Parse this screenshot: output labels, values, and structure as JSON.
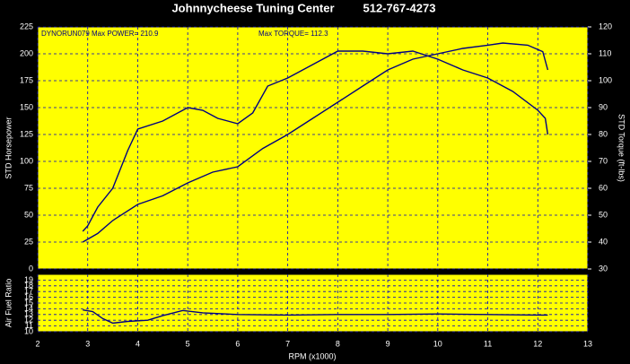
{
  "chart_data": [
    {
      "type": "line",
      "title": "Johnnycheese Tuning Center",
      "subtitle": "512-767-4273",
      "annotations": [
        "DYNORUN079 Max POWER= 210.9",
        "Max TORQUE= 112.3"
      ],
      "ylabel": "STD Horsepower",
      "y2label": "STD Torque (ft-lbs)",
      "xlim": [
        2,
        13
      ],
      "xticks": [
        2,
        3,
        4,
        5,
        6,
        7,
        8,
        9,
        10,
        11,
        12,
        13
      ],
      "ylim": [
        0,
        225
      ],
      "yticks": [
        0,
        25,
        50,
        75,
        100,
        125,
        150,
        175,
        200,
        225
      ],
      "y2lim": [
        30,
        120
      ],
      "y2ticks": [
        30,
        40,
        50,
        60,
        70,
        80,
        90,
        100,
        110,
        120
      ],
      "grid": true,
      "background": "#ffff00",
      "series": [
        {
          "color": "#000080",
          "x": [
            2.9,
            3.2,
            3.5,
            4.0,
            4.5,
            5.0,
            5.5,
            6.0,
            6.5,
            7.0,
            7.5,
            8.0,
            8.5,
            9.0,
            9.5,
            10.0,
            10.5,
            11.0,
            11.3,
            11.8,
            12.1,
            12.2
          ],
          "values": [
            25,
            33,
            45,
            60,
            68,
            80,
            90,
            95,
            112,
            125,
            140,
            155,
            170,
            185,
            195,
            200,
            205,
            208,
            210,
            208,
            202,
            185
          ]
        },
        {
          "color": "#000080",
          "axis": "y2",
          "x": [
            2.9,
            3.0,
            3.2,
            3.5,
            3.8,
            4.0,
            4.5,
            5.0,
            5.3,
            5.6,
            6.0,
            6.3,
            6.6,
            7.0,
            7.5,
            8.0,
            8.5,
            9.0,
            9.5,
            10.0,
            10.5,
            11.0,
            11.5,
            12.0,
            12.15,
            12.2
          ],
          "values": [
            44,
            46,
            53,
            60,
            74,
            82,
            85,
            90,
            89,
            86,
            84,
            88,
            98,
            101,
            106,
            111,
            111,
            110,
            111,
            108,
            104,
            101,
            96,
            89,
            86,
            80
          ]
        }
      ]
    },
    {
      "type": "line",
      "ylabel": "Air Fuel Ratio",
      "xlabel": "RPM (x1000)",
      "xlim": [
        2,
        13
      ],
      "xticks": [
        2,
        3,
        4,
        5,
        6,
        7,
        8,
        9,
        10,
        11,
        12,
        13
      ],
      "ylim": [
        10,
        20
      ],
      "yticks": [
        10,
        11,
        12,
        13,
        14,
        15,
        16,
        17,
        18,
        19
      ],
      "grid": true,
      "background": "#ffff00",
      "series": [
        {
          "color": "#000080",
          "x": [
            2.9,
            3.1,
            3.3,
            3.5,
            3.8,
            4.2,
            4.5,
            4.9,
            5.3,
            6.0,
            7.0,
            8.0,
            9.0,
            10.0,
            11.0,
            12.0,
            12.2
          ],
          "values": [
            13.8,
            13.5,
            12.3,
            11.5,
            11.8,
            12.0,
            12.8,
            13.7,
            13.3,
            13.0,
            12.9,
            13.0,
            13.0,
            13.1,
            13.0,
            12.9,
            12.9
          ]
        }
      ]
    }
  ]
}
